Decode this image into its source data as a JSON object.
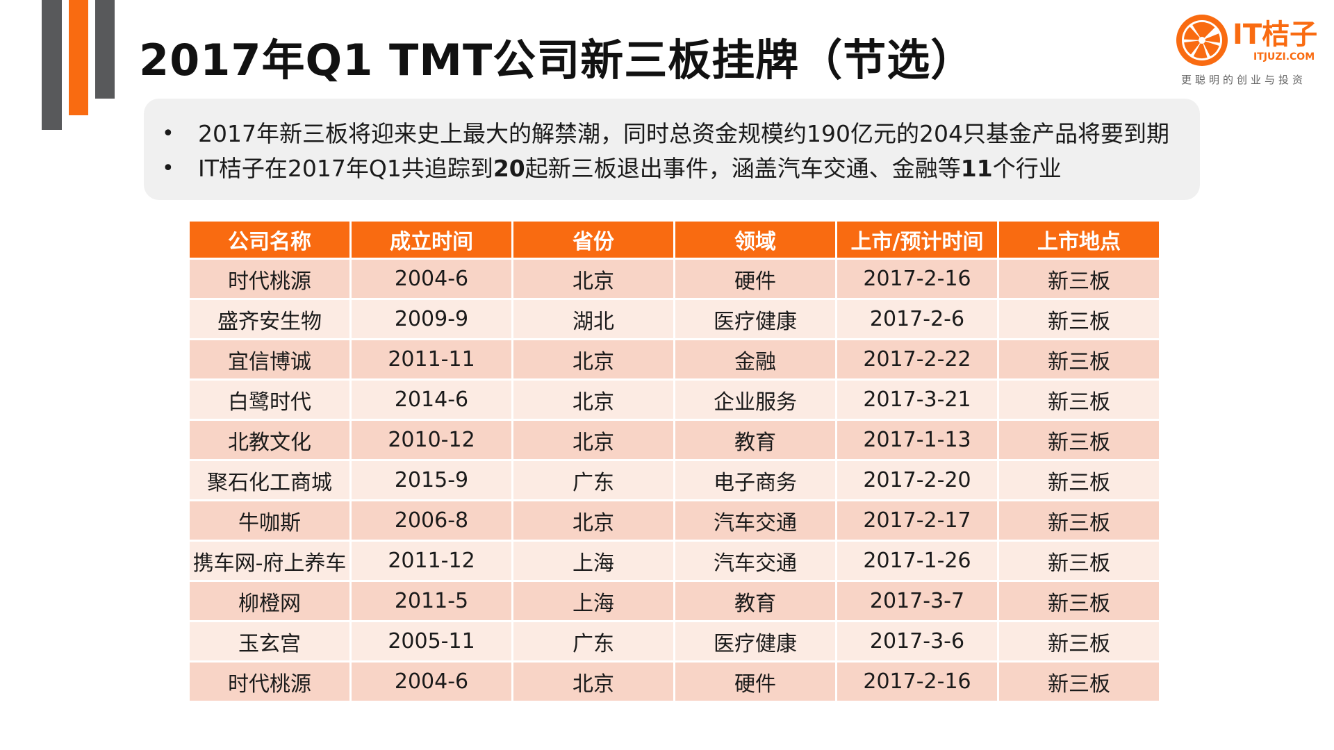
{
  "title": "2017年Q1 TMT公司新三板挂牌（节选）",
  "logo": {
    "brand": "IT桔子",
    "domain": "ITJUZI.COM",
    "slogan": "更聪明的创业与投资"
  },
  "colors": {
    "accent": "#f96b11",
    "dark_bar": "#58595b",
    "row_odd": "#f8d4c6",
    "row_even": "#fcebe3"
  },
  "summary": {
    "bullet_1": "2017年新三板将迎来史上最大的解禁潮，同时总资金规模约190亿元的204只基金产品将要到期",
    "bullet_2_pre": "IT桔子在2017年Q1共追踪到",
    "bullet_2_num1": "20",
    "bullet_2_mid": "起新三板退出事件，涵盖汽车交通、金融等",
    "bullet_2_num2": "11",
    "bullet_2_post": "个行业"
  },
  "table": {
    "headers": [
      "公司名称",
      "成立时间",
      "省份",
      "领域",
      "上市/预计时间",
      "上市地点"
    ],
    "rows": [
      [
        "时代桃源",
        "2004-6",
        "北京",
        "硬件",
        "2017-2-16",
        "新三板"
      ],
      [
        "盛齐安生物",
        "2009-9",
        "湖北",
        "医疗健康",
        "2017-2-6",
        "新三板"
      ],
      [
        "宜信博诚",
        "2011-11",
        "北京",
        "金融",
        "2017-2-22",
        "新三板"
      ],
      [
        "白鹭时代",
        "2014-6",
        "北京",
        "企业服务",
        "2017-3-21",
        "新三板"
      ],
      [
        "北教文化",
        "2010-12",
        "北京",
        "教育",
        "2017-1-13",
        "新三板"
      ],
      [
        "聚石化工商城",
        "2015-9",
        "广东",
        "电子商务",
        "2017-2-20",
        "新三板"
      ],
      [
        "牛咖斯",
        "2006-8",
        "北京",
        "汽车交通",
        "2017-2-17",
        "新三板"
      ],
      [
        "携车网-府上养车",
        "2011-12",
        "上海",
        "汽车交通",
        "2017-1-26",
        "新三板"
      ],
      [
        "柳橙网",
        "2011-5",
        "上海",
        "教育",
        "2017-3-7",
        "新三板"
      ],
      [
        "玉玄宫",
        "2005-11",
        "广东",
        "医疗健康",
        "2017-3-6",
        "新三板"
      ],
      [
        "时代桃源",
        "2004-6",
        "北京",
        "硬件",
        "2017-2-16",
        "新三板"
      ]
    ]
  }
}
